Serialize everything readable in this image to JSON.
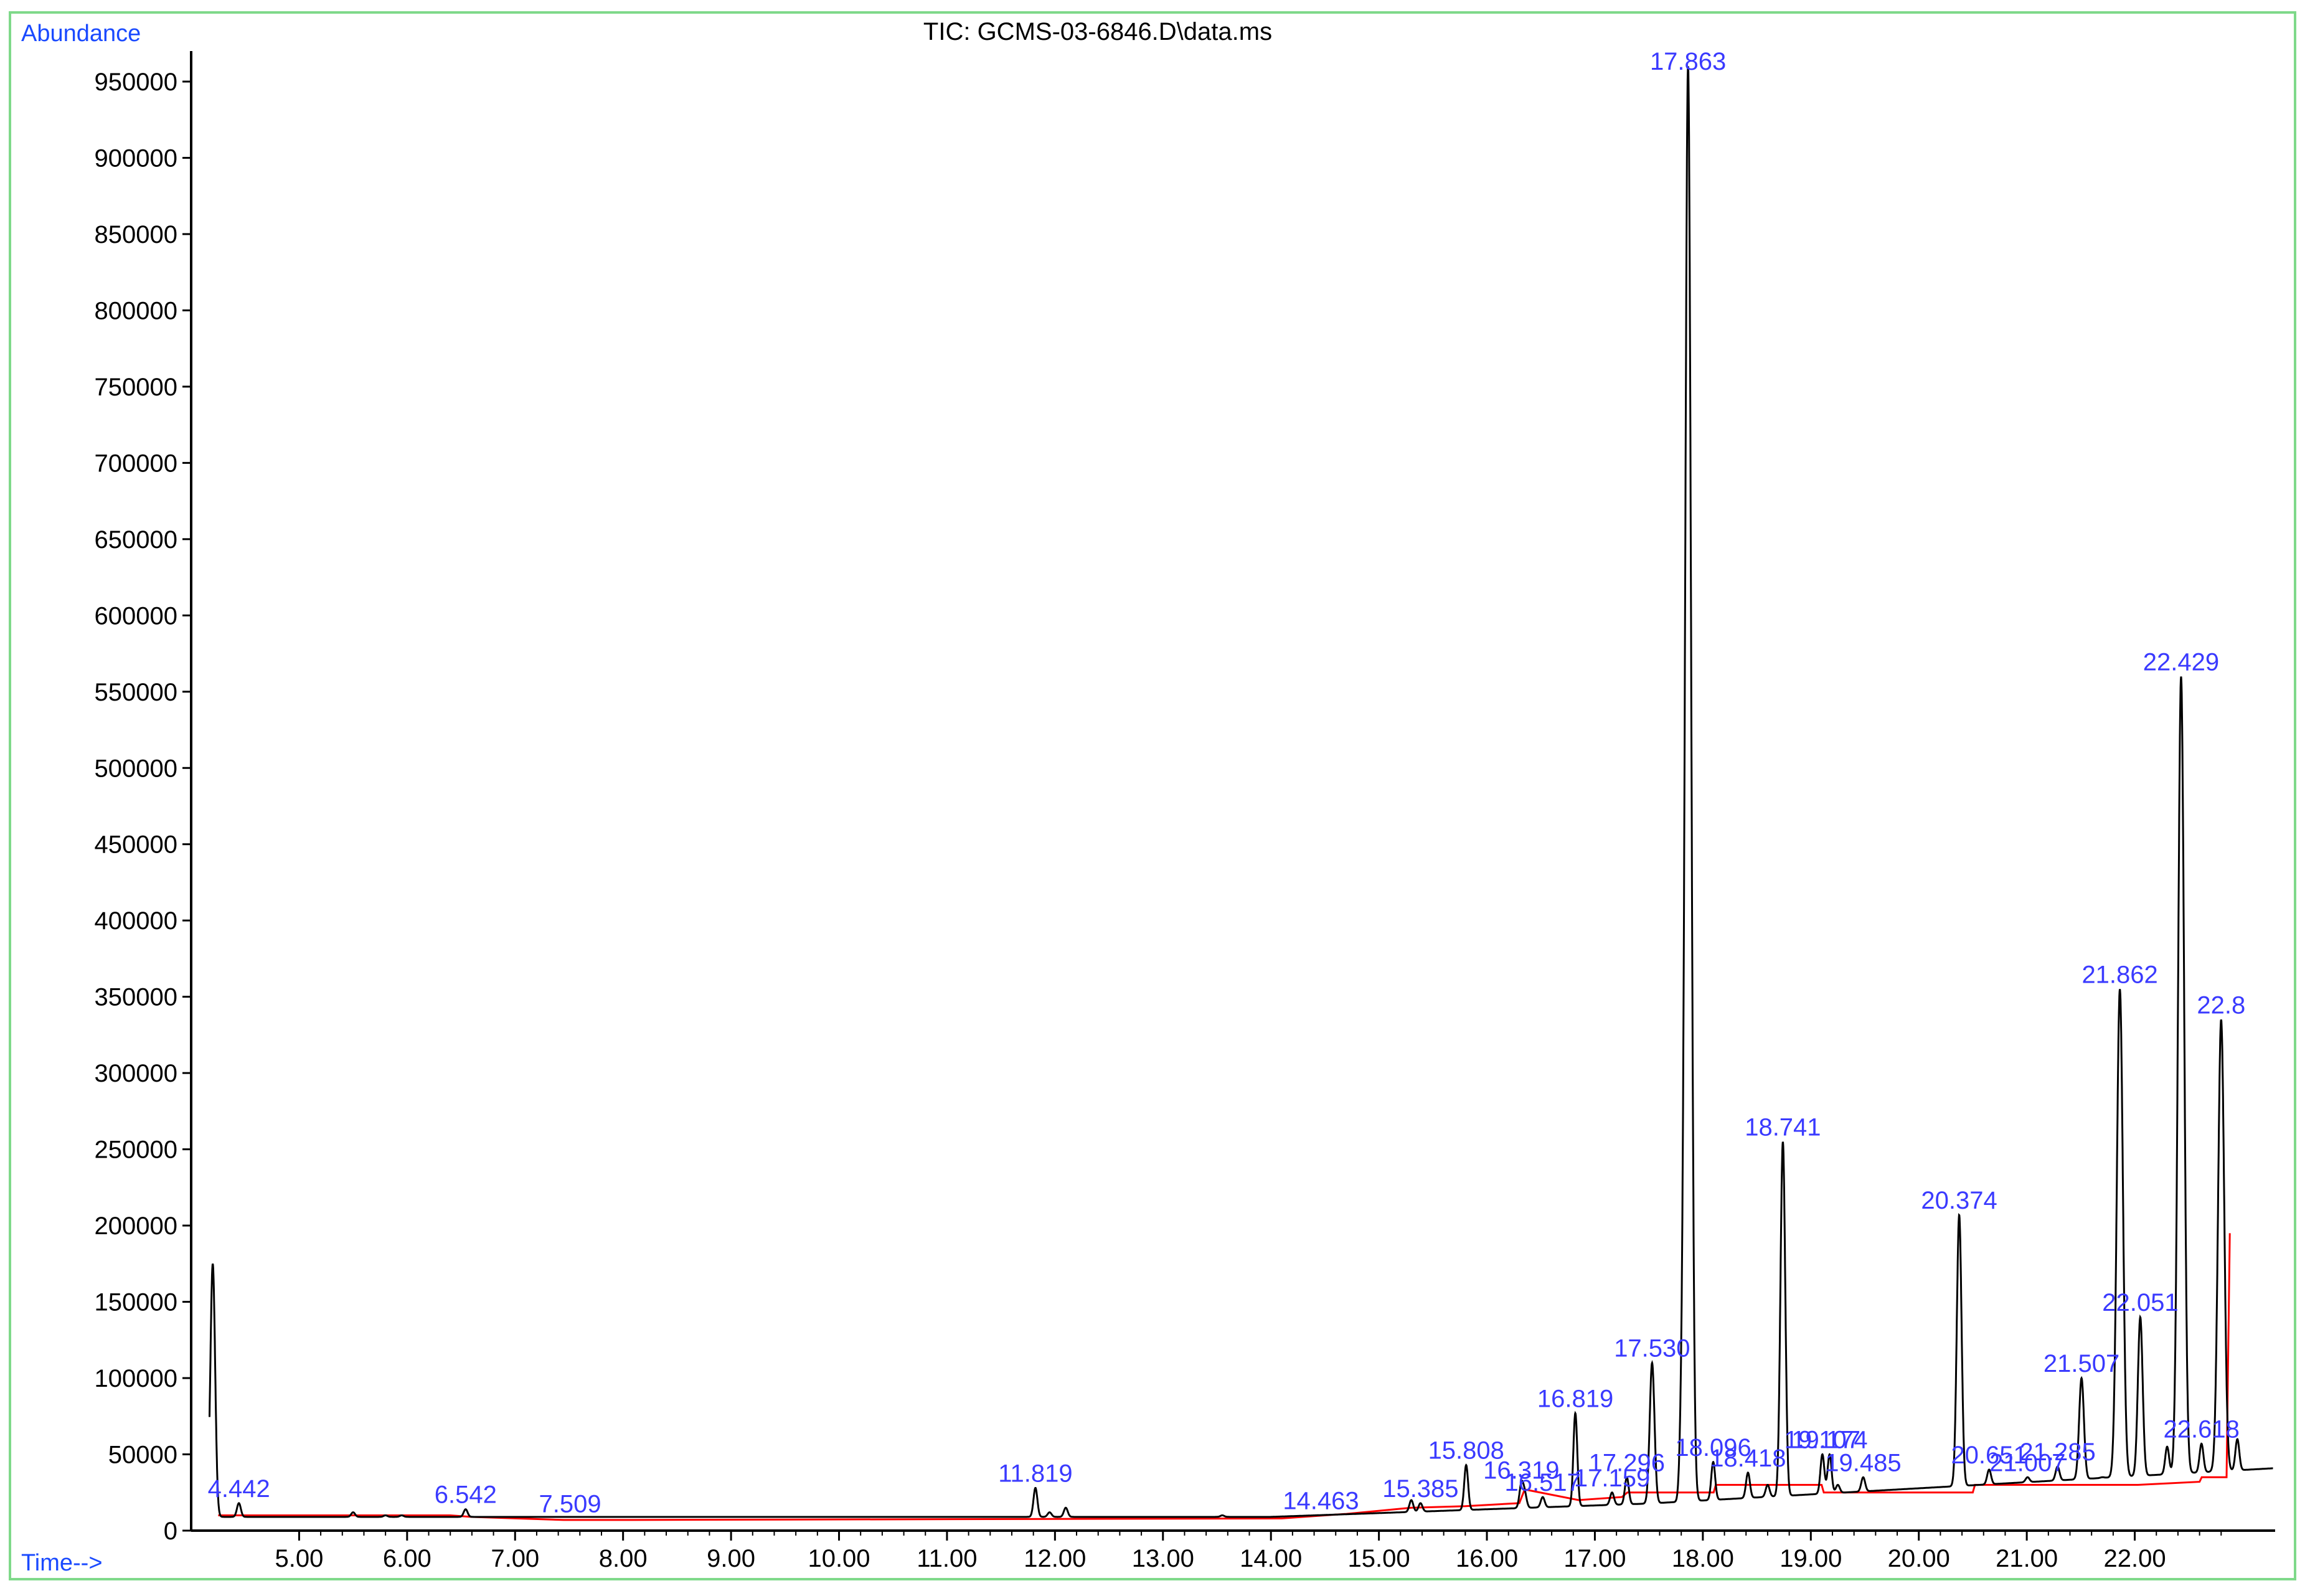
{
  "title": "TIC: GCMS-03-6846.D\\data.ms",
  "y_axis_label": "Abundance",
  "x_axis_label": "Time-->",
  "colors": {
    "trace": "#000000",
    "baseline": "#ff0000",
    "label": "#3a3aff",
    "frame": "#7fd98a"
  },
  "chart_data": {
    "type": "line",
    "title": "TIC: GCMS-03-6846.D\\data.ms",
    "xlabel": "Time-->",
    "ylabel": "Abundance",
    "xlim": [
      4.0,
      23.3
    ],
    "ylim": [
      0,
      970000
    ],
    "x_ticks": [
      "5.00",
      "6.00",
      "7.00",
      "8.00",
      "9.00",
      "10.00",
      "11.00",
      "12.00",
      "13.00",
      "14.00",
      "15.00",
      "16.00",
      "17.00",
      "18.00",
      "19.00",
      "20.00",
      "21.00",
      "22.00"
    ],
    "y_ticks": [
      "0",
      "50000",
      "100000",
      "150000",
      "200000",
      "250000",
      "300000",
      "350000",
      "400000",
      "450000",
      "500000",
      "550000",
      "600000",
      "650000",
      "700000",
      "750000",
      "800000",
      "850000",
      "900000",
      "950000"
    ],
    "peaks": [
      {
        "label": "4.442",
        "rt": 4.442,
        "abundance": 18000
      },
      {
        "label": "6.542",
        "rt": 6.542,
        "abundance": 14000
      },
      {
        "label": "7.509",
        "rt": 7.509,
        "abundance": 8000
      },
      {
        "label": "11.819",
        "rt": 11.819,
        "abundance": 28000
      },
      {
        "label": "14.463",
        "rt": 14.463,
        "abundance": 10000
      },
      {
        "label": "15.385",
        "rt": 15.385,
        "abundance": 18000
      },
      {
        "label": "15.808",
        "rt": 15.808,
        "abundance": 43000
      },
      {
        "label": "16.319",
        "rt": 16.319,
        "abundance": 30000
      },
      {
        "label": "16.517",
        "rt": 16.517,
        "abundance": 22000
      },
      {
        "label": "16.819",
        "rt": 16.819,
        "abundance": 77000
      },
      {
        "label": "17.159",
        "rt": 17.159,
        "abundance": 25000
      },
      {
        "label": "17.296",
        "rt": 17.296,
        "abundance": 35000
      },
      {
        "label": "17.530",
        "rt": 17.53,
        "abundance": 110000
      },
      {
        "label": "17.863",
        "rt": 17.863,
        "abundance": 960000
      },
      {
        "label": "18.096",
        "rt": 18.096,
        "abundance": 45000
      },
      {
        "label": "18.418",
        "rt": 18.418,
        "abundance": 38000
      },
      {
        "label": "18.741",
        "rt": 18.741,
        "abundance": 255000
      },
      {
        "label": "19.107",
        "rt": 19.107,
        "abundance": 50000
      },
      {
        "label": "19.174",
        "rt": 19.174,
        "abundance": 50000
      },
      {
        "label": "19.485",
        "rt": 19.485,
        "abundance": 35000
      },
      {
        "label": "20.374",
        "rt": 20.374,
        "abundance": 207000
      },
      {
        "label": "20.651",
        "rt": 20.651,
        "abundance": 40000
      },
      {
        "label": "21.007",
        "rt": 21.007,
        "abundance": 35000
      },
      {
        "label": "21.285",
        "rt": 21.285,
        "abundance": 42000
      },
      {
        "label": "21.507",
        "rt": 21.507,
        "abundance": 100000
      },
      {
        "label": "21.862",
        "rt": 21.862,
        "abundance": 355000
      },
      {
        "label": "22.051",
        "rt": 22.051,
        "abundance": 140000
      },
      {
        "label": "22.429",
        "rt": 22.429,
        "abundance": 560000
      },
      {
        "label": "22.618",
        "rt": 22.618,
        "abundance": 57000
      },
      {
        "label": "22.8",
        "rt": 22.8,
        "abundance": 335000
      }
    ],
    "extra_peaks": [
      {
        "rt": 4.2,
        "abundance": 175000
      },
      {
        "rt": 5.5,
        "abundance": 12000
      },
      {
        "rt": 5.8,
        "abundance": 10000
      },
      {
        "rt": 5.95,
        "abundance": 10000
      },
      {
        "rt": 6.15,
        "abundance": 9000
      },
      {
        "rt": 11.95,
        "abundance": 12000
      },
      {
        "rt": 12.1,
        "abundance": 15000
      },
      {
        "rt": 13.55,
        "abundance": 10000
      },
      {
        "rt": 15.3,
        "abundance": 20000
      },
      {
        "rt": 16.35,
        "abundance": 24000
      },
      {
        "rt": 17.8,
        "abundance": 50000
      },
      {
        "rt": 18.6,
        "abundance": 30000
      },
      {
        "rt": 19.25,
        "abundance": 30000
      },
      {
        "rt": 21.7,
        "abundance": 35000
      },
      {
        "rt": 22.3,
        "abundance": 55000
      },
      {
        "rt": 22.95,
        "abundance": 60000
      }
    ],
    "baseline": [
      [
        4.25,
        10000
      ],
      [
        4.5,
        10000
      ],
      [
        6.4,
        10000
      ],
      [
        6.6,
        9000
      ],
      [
        7.45,
        7000
      ],
      [
        7.9,
        7000
      ],
      [
        14.1,
        8000
      ],
      [
        14.7,
        11000
      ],
      [
        15.3,
        15000
      ],
      [
        15.8,
        16000
      ],
      [
        16.3,
        18000
      ],
      [
        16.35,
        27000
      ],
      [
        16.85,
        20000
      ],
      [
        17.25,
        22000
      ],
      [
        17.3,
        25000
      ],
      [
        17.6,
        25000
      ],
      [
        18.1,
        25000
      ],
      [
        18.12,
        30000
      ],
      [
        18.8,
        30000
      ],
      [
        19.1,
        30000
      ],
      [
        19.12,
        25000
      ],
      [
        20.3,
        25000
      ],
      [
        20.5,
        25000
      ],
      [
        20.52,
        30000
      ],
      [
        21.9,
        30000
      ],
      [
        22.0,
        30000
      ],
      [
        22.03,
        30000
      ],
      [
        22.6,
        32000
      ],
      [
        22.62,
        35000
      ],
      [
        22.85,
        35000
      ],
      [
        22.88,
        195000
      ]
    ]
  }
}
